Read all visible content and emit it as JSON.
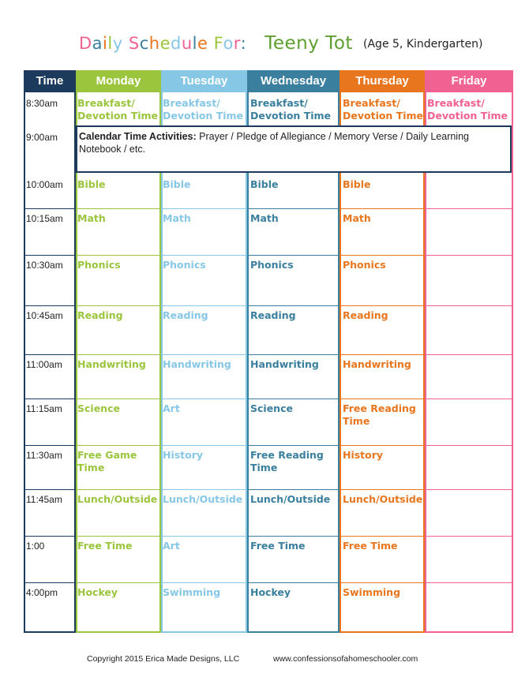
{
  "title": {
    "main_label": "Daily Schedule For:",
    "name": "Teeny Tot",
    "subtitle": "(Age 5, Kindergarten)"
  },
  "colors": {
    "navy": "#1b3a5c",
    "green": "#9bc53d",
    "lightblue": "#87c7e6",
    "teal": "#3a7f9e",
    "orange": "#e8761e",
    "pink": "#f06292"
  },
  "headers": {
    "time": "Time",
    "monday": "Monday",
    "tuesday": "Tuesday",
    "wednesday": "Wednesday",
    "thursday": "Thursday",
    "friday": "Friday"
  },
  "times": [
    "8:30am",
    "9:00am",
    "10:00am",
    "10:15am",
    "10:30am",
    "10:45am",
    "11:00am",
    "11:15am",
    "11:30am",
    "11:45am",
    "1:00",
    "4:00pm"
  ],
  "row_0": {
    "monday": "Breakfast/ Devotion Time",
    "tuesday": "Breakfast/ Devotion Time",
    "wednesday": "Breakfast/ Devotion Time",
    "thursday": "Breakfast/ Devotion Time",
    "friday": "Breakfast/ Devotion Time"
  },
  "calendar": {
    "label": "Calendar Time Activities:",
    "text": " Prayer / Pledge of Allegiance / Memory Verse / Daily Learning Notebook / etc."
  },
  "rows": [
    {
      "monday": "Bible",
      "tuesday": "Bible",
      "wednesday": "Bible",
      "thursday": "Bible"
    },
    {
      "monday": "Math",
      "tuesday": "Math",
      "wednesday": "Math",
      "thursday": "Math"
    },
    {
      "monday": "Phonics",
      "tuesday": "Phonics",
      "wednesday": "Phonics",
      "thursday": "Phonics"
    },
    {
      "monday": "Reading",
      "tuesday": "Reading",
      "wednesday": "Reading",
      "thursday": "Reading"
    },
    {
      "monday": "Handwriting",
      "tuesday": "Handwriting",
      "wednesday": "Handwriting",
      "thursday": "Handwriting"
    },
    {
      "monday": "Science",
      "tuesday": "Art",
      "wednesday": "Science",
      "thursday": "Free Reading Time"
    },
    {
      "monday": "Free Game Time",
      "tuesday": "History",
      "wednesday": "Free Reading Time",
      "thursday": "History"
    },
    {
      "monday": "Lunch/Outside",
      "tuesday": "Lunch/Outside",
      "wednesday": "Lunch/Outside",
      "thursday": "Lunch/Outside"
    },
    {
      "monday": "Free Time",
      "tuesday": "Art",
      "wednesday": "Free Time",
      "thursday": "Free Time"
    },
    {
      "monday": "Hockey",
      "tuesday": "Swimming",
      "wednesday": "Hockey",
      "thursday": "Swimming"
    }
  ],
  "footer": {
    "copyright": "Copyright 2015 Erica Made Designs, LLC",
    "url": "www.confessionsofahomeschooler.com"
  }
}
